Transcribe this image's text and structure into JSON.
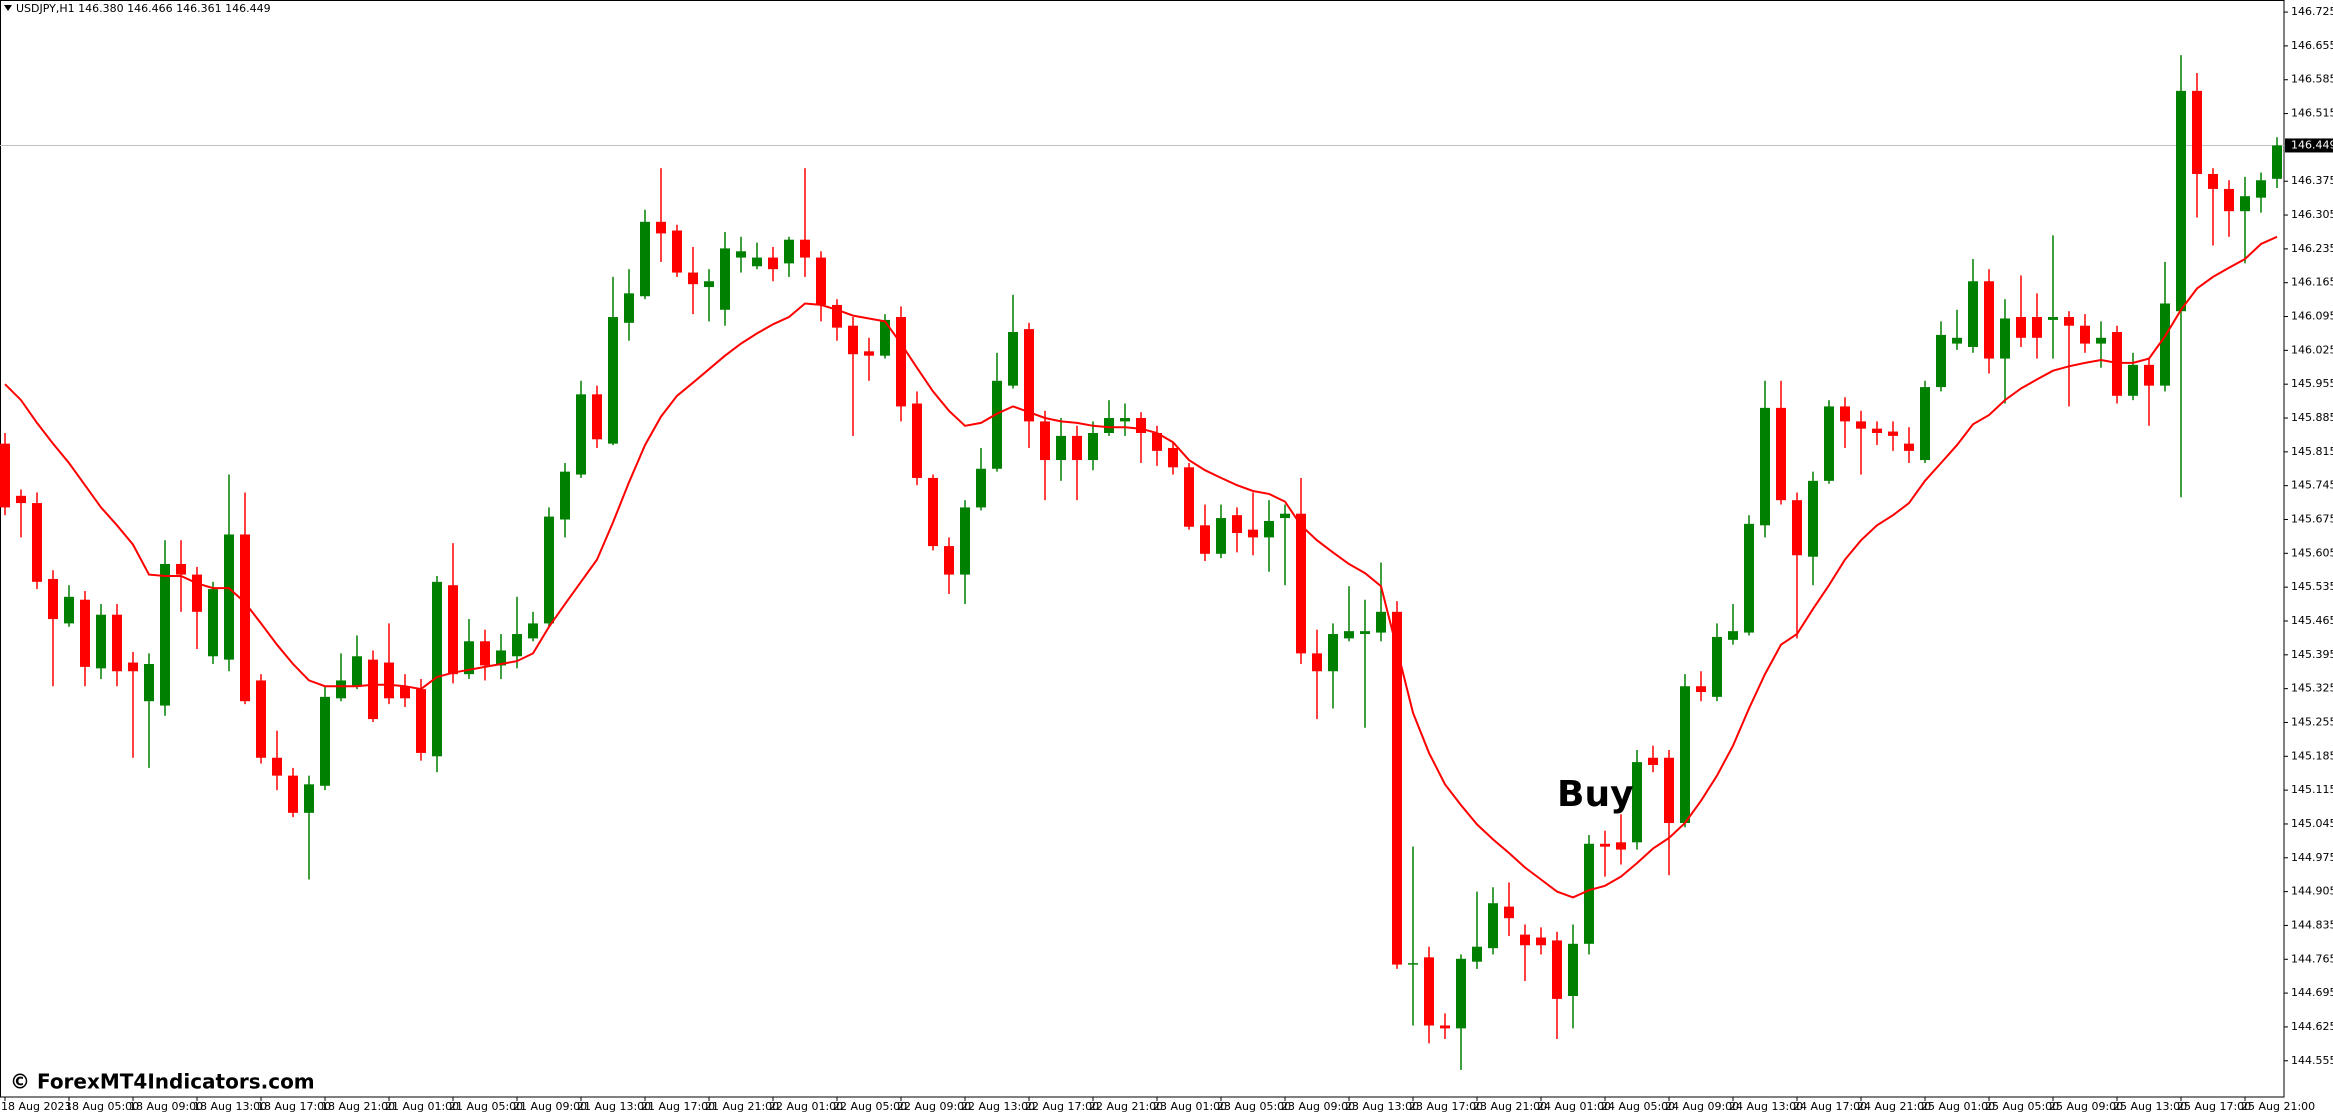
{
  "chart_data": {
    "type": "candlestick",
    "subtitle": "USDJPY,H1  146.380 146.466 146.361 146.449",
    "annotation": "Buy",
    "watermark": "© ForexMT4Indicators.com",
    "up_color": "#008000",
    "down_color": "#ff0000",
    "ylim": [
      144.48,
      146.75
    ],
    "yticks": [
      146.725,
      146.655,
      146.585,
      146.515,
      146.375,
      146.305,
      146.235,
      146.165,
      146.095,
      146.025,
      145.955,
      145.885,
      145.815,
      145.745,
      145.675,
      145.605,
      145.535,
      145.465,
      145.395,
      145.325,
      145.255,
      145.185,
      145.115,
      145.045,
      144.975,
      144.905,
      144.835,
      144.765,
      144.695,
      144.625,
      144.555
    ],
    "last_price": 146.449,
    "categories": [
      "18 Aug 2023",
      null,
      null,
      null,
      "18 Aug 05:00",
      null,
      null,
      null,
      "18 Aug 09:00",
      null,
      null,
      null,
      "18 Aug 13:00",
      null,
      null,
      null,
      "18 Aug 17:00",
      null,
      null,
      null,
      "18 Aug 21:00",
      null,
      null,
      null,
      "21 Aug 01:00",
      null,
      null,
      null,
      "21 Aug 05:00",
      null,
      null,
      null,
      "21 Aug 09:00",
      null,
      null,
      null,
      "21 Aug 13:00",
      null,
      null,
      null,
      "21 Aug 17:00",
      null,
      null,
      null,
      "21 Aug 21:00",
      null,
      null,
      null,
      "22 Aug 01:00",
      null,
      null,
      null,
      "22 Aug 05:00",
      null,
      null,
      null,
      "22 Aug 09:00",
      null,
      null,
      null,
      "22 Aug 13:00",
      null,
      null,
      null,
      "22 Aug 17:00",
      null,
      null,
      null,
      "22 Aug 21:00",
      null,
      null,
      null,
      "23 Aug 01:00",
      null,
      null,
      null,
      "23 Aug 05:00",
      null,
      null,
      null,
      "23 Aug 09:00",
      null,
      null,
      null,
      "23 Aug 13:00",
      null,
      null,
      null,
      "23 Aug 17:00",
      null,
      null,
      null,
      "23 Aug 21:00",
      null,
      null,
      null,
      "24 Aug 01:00",
      null,
      null,
      null,
      "24 Aug 05:00",
      null,
      null,
      null,
      "24 Aug 09:00",
      null,
      null,
      null,
      "24 Aug 13:00",
      null,
      null,
      null,
      "24 Aug 17:00",
      null,
      null,
      null,
      "24 Aug 21:00",
      null,
      null,
      null,
      "25 Aug 01:00",
      null,
      null,
      null,
      "25 Aug 05:00",
      null,
      null,
      null,
      "25 Aug 09:00",
      null,
      null,
      null,
      "25 Aug 13:00",
      null,
      null,
      null,
      "25 Aug 17:00",
      null,
      null,
      null,
      "25 Aug 21:00",
      null,
      null
    ],
    "ohlc": [
      [
        145.832,
        145.854,
        145.684,
        145.7
      ],
      [
        145.724,
        145.737,
        145.638,
        145.709
      ],
      [
        145.709,
        145.731,
        145.531,
        145.546
      ],
      [
        145.552,
        145.57,
        145.33,
        145.469
      ],
      [
        145.46,
        145.539,
        145.453,
        145.515
      ],
      [
        145.509,
        145.527,
        145.33,
        145.37
      ],
      [
        145.367,
        145.5,
        145.345,
        145.478
      ],
      [
        145.478,
        145.5,
        145.33,
        145.361
      ],
      [
        145.379,
        145.401,
        145.182,
        145.361
      ],
      [
        145.299,
        145.398,
        145.161,
        145.376
      ],
      [
        145.29,
        145.632,
        145.269,
        145.583
      ],
      [
        145.583,
        145.632,
        145.484,
        145.561
      ],
      [
        145.561,
        145.577,
        145.407,
        145.484
      ],
      [
        145.392,
        145.546,
        145.376,
        145.531
      ],
      [
        145.385,
        145.768,
        145.361,
        145.644
      ],
      [
        145.644,
        145.731,
        145.293,
        145.299
      ],
      [
        145.342,
        145.355,
        145.17,
        145.182
      ],
      [
        145.182,
        145.238,
        145.115,
        145.145
      ],
      [
        145.145,
        145.161,
        145.059,
        145.068
      ],
      [
        145.068,
        145.145,
        144.93,
        145.127
      ],
      [
        145.124,
        145.33,
        145.115,
        145.308
      ],
      [
        145.305,
        145.398,
        145.299,
        145.342
      ],
      [
        145.33,
        145.435,
        145.324,
        145.392
      ],
      [
        145.385,
        145.404,
        145.256,
        145.262
      ],
      [
        145.379,
        145.46,
        145.293,
        145.305
      ],
      [
        145.33,
        145.355,
        145.287,
        145.305
      ],
      [
        145.324,
        145.345,
        145.176,
        145.192
      ],
      [
        145.185,
        145.558,
        145.152,
        145.546
      ],
      [
        145.539,
        145.626,
        145.336,
        145.355
      ],
      [
        145.355,
        145.469,
        145.345,
        145.423
      ],
      [
        145.423,
        145.447,
        145.342,
        145.373
      ],
      [
        145.373,
        145.438,
        145.345,
        145.404
      ],
      [
        145.392,
        145.515,
        145.367,
        145.438
      ],
      [
        145.429,
        145.484,
        145.423,
        145.46
      ],
      [
        145.46,
        145.7,
        145.453,
        145.681
      ],
      [
        145.675,
        145.792,
        145.638,
        145.774
      ],
      [
        145.768,
        145.962,
        145.761,
        145.934
      ],
      [
        145.934,
        145.952,
        145.823,
        145.841
      ],
      [
        145.832,
        146.177,
        145.829,
        146.094
      ],
      [
        146.082,
        146.193,
        146.045,
        146.143
      ],
      [
        146.137,
        146.316,
        146.131,
        146.291
      ],
      [
        146.291,
        146.402,
        146.208,
        146.267
      ],
      [
        146.273,
        146.285,
        146.177,
        146.186
      ],
      [
        146.186,
        146.239,
        146.1,
        146.162
      ],
      [
        146.156,
        146.193,
        146.085,
        146.168
      ],
      [
        146.109,
        146.27,
        146.076,
        146.236
      ],
      [
        146.217,
        146.26,
        146.186,
        146.23
      ],
      [
        146.199,
        146.248,
        146.193,
        146.217
      ],
      [
        146.217,
        146.239,
        146.168,
        146.193
      ],
      [
        146.205,
        146.26,
        146.177,
        146.254
      ],
      [
        146.254,
        146.402,
        146.177,
        146.217
      ],
      [
        146.217,
        146.23,
        146.085,
        146.119
      ],
      [
        146.119,
        146.131,
        146.045,
        146.072
      ],
      [
        146.076,
        146.094,
        145.848,
        146.017
      ],
      [
        146.023,
        146.051,
        145.962,
        146.014
      ],
      [
        146.014,
        146.1,
        146.008,
        146.088
      ],
      [
        146.094,
        146.116,
        145.878,
        145.909
      ],
      [
        145.915,
        145.94,
        145.746,
        145.761
      ],
      [
        145.761,
        145.768,
        145.611,
        145.62
      ],
      [
        145.62,
        145.638,
        145.521,
        145.561
      ],
      [
        145.561,
        145.715,
        145.5,
        145.7
      ],
      [
        145.7,
        145.823,
        145.694,
        145.78
      ],
      [
        145.78,
        146.02,
        145.774,
        145.962
      ],
      [
        145.952,
        146.14,
        145.946,
        146.063
      ],
      [
        146.069,
        146.082,
        145.823,
        145.878
      ],
      [
        145.878,
        145.9,
        145.715,
        145.798
      ],
      [
        145.798,
        145.885,
        145.755,
        145.848
      ],
      [
        145.848,
        145.869,
        145.715,
        145.798
      ],
      [
        145.798,
        145.878,
        145.777,
        145.854
      ],
      [
        145.854,
        145.922,
        145.848,
        145.885
      ],
      [
        145.878,
        145.915,
        145.848,
        145.885
      ],
      [
        145.885,
        145.897,
        145.792,
        145.854
      ],
      [
        145.854,
        145.869,
        145.786,
        145.817
      ],
      [
        145.823,
        145.835,
        145.768,
        145.783
      ],
      [
        145.783,
        145.792,
        145.654,
        145.66
      ],
      [
        145.663,
        145.706,
        145.589,
        145.604
      ],
      [
        145.604,
        145.706,
        145.595,
        145.678
      ],
      [
        145.684,
        145.7,
        145.607,
        145.647
      ],
      [
        145.654,
        145.731,
        145.601,
        145.638
      ],
      [
        145.638,
        145.715,
        145.567,
        145.672
      ],
      [
        145.678,
        145.706,
        145.539,
        145.687
      ],
      [
        145.687,
        145.761,
        145.376,
        145.398
      ],
      [
        145.398,
        145.447,
        145.262,
        145.361
      ],
      [
        145.361,
        145.46,
        145.284,
        145.438
      ],
      [
        145.429,
        145.537,
        145.423,
        145.444
      ],
      [
        145.438,
        145.509,
        145.244,
        145.444
      ],
      [
        145.441,
        145.586,
        145.423,
        145.484
      ],
      [
        145.484,
        145.506,
        144.745,
        144.754
      ],
      [
        144.754,
        144.998,
        144.628,
        144.757
      ],
      [
        144.769,
        144.791,
        144.591,
        144.628
      ],
      [
        144.628,
        144.653,
        144.6,
        144.622
      ],
      [
        144.622,
        144.775,
        144.536,
        144.766
      ],
      [
        144.76,
        144.905,
        144.745,
        144.791
      ],
      [
        144.788,
        144.914,
        144.775,
        144.881
      ],
      [
        144.874,
        144.924,
        144.813,
        144.85
      ],
      [
        144.816,
        144.837,
        144.72,
        144.794
      ],
      [
        144.81,
        144.831,
        144.775,
        144.794
      ],
      [
        144.804,
        144.822,
        144.6,
        144.683
      ],
      [
        144.689,
        144.837,
        144.622,
        144.797
      ],
      [
        144.797,
        145.022,
        144.775,
        145.004
      ],
      [
        145.004,
        145.031,
        144.936,
        144.998
      ],
      [
        145.007,
        145.065,
        144.961,
        144.992
      ],
      [
        145.007,
        145.198,
        144.992,
        145.173
      ],
      [
        145.182,
        145.207,
        145.152,
        145.167
      ],
      [
        145.182,
        145.198,
        144.939,
        145.047
      ],
      [
        145.047,
        145.355,
        145.038,
        145.33
      ],
      [
        145.33,
        145.361,
        145.299,
        145.318
      ],
      [
        145.308,
        145.46,
        145.299,
        145.432
      ],
      [
        145.426,
        145.5,
        145.416,
        145.444
      ],
      [
        145.441,
        145.684,
        145.435,
        145.666
      ],
      [
        145.663,
        145.962,
        145.638,
        145.906
      ],
      [
        145.906,
        145.962,
        145.706,
        145.715
      ],
      [
        145.715,
        145.731,
        145.429,
        145.601
      ],
      [
        145.598,
        145.774,
        145.539,
        145.755
      ],
      [
        145.755,
        145.922,
        145.749,
        145.909
      ],
      [
        145.909,
        145.928,
        145.823,
        145.878
      ],
      [
        145.878,
        145.9,
        145.768,
        145.863
      ],
      [
        145.863,
        145.878,
        145.829,
        145.854
      ],
      [
        145.857,
        145.878,
        145.817,
        145.848
      ],
      [
        145.832,
        145.866,
        145.792,
        145.817
      ],
      [
        145.798,
        145.962,
        145.792,
        145.949
      ],
      [
        145.949,
        146.085,
        145.94,
        146.057
      ],
      [
        146.039,
        146.109,
        146.026,
        146.051
      ],
      [
        146.032,
        146.214,
        146.02,
        146.168
      ],
      [
        146.168,
        146.193,
        145.977,
        146.008
      ],
      [
        146.008,
        146.131,
        145.915,
        146.091
      ],
      [
        146.094,
        146.18,
        146.032,
        146.051
      ],
      [
        146.094,
        146.143,
        146.008,
        146.051
      ],
      [
        146.088,
        146.263,
        146.008,
        146.094
      ],
      [
        146.094,
        146.106,
        145.909,
        146.076
      ],
      [
        146.076,
        146.1,
        146.02,
        146.039
      ],
      [
        146.039,
        146.085,
        145.989,
        146.051
      ],
      [
        146.063,
        146.076,
        145.915,
        145.931
      ],
      [
        145.931,
        146.02,
        145.922,
        145.995
      ],
      [
        145.995,
        146.008,
        145.869,
        145.952
      ],
      [
        145.952,
        146.208,
        145.94,
        146.122
      ],
      [
        146.106,
        146.636,
        145.721,
        146.562
      ],
      [
        146.562,
        146.599,
        146.3,
        146.39
      ],
      [
        146.39,
        146.402,
        146.242,
        146.359
      ],
      [
        146.359,
        146.377,
        146.26,
        146.313
      ],
      [
        146.313,
        146.384,
        146.205,
        146.344
      ],
      [
        146.341,
        146.393,
        146.31,
        146.377
      ],
      [
        146.38,
        146.466,
        146.361,
        146.449
      ]
    ],
    "series": [
      {
        "type": "line",
        "color": "#ff0000",
        "values": [
          145.955,
          145.922,
          145.875,
          145.832,
          145.792,
          145.746,
          145.7,
          145.663,
          145.623,
          145.561,
          145.558,
          145.558,
          145.543,
          145.533,
          145.533,
          145.503,
          145.46,
          145.416,
          145.376,
          145.342,
          145.33,
          145.33,
          145.33,
          145.333,
          145.333,
          145.33,
          145.324,
          145.349,
          145.358,
          145.364,
          145.37,
          145.376,
          145.382,
          145.398,
          145.453,
          145.5,
          145.546,
          145.592,
          145.669,
          145.752,
          145.829,
          145.888,
          145.931,
          145.958,
          145.986,
          146.014,
          146.039,
          146.06,
          146.079,
          146.094,
          146.122,
          146.119,
          146.109,
          146.097,
          146.091,
          146.085,
          146.039,
          145.989,
          145.94,
          145.9,
          145.869,
          145.875,
          145.894,
          145.909,
          145.897,
          145.885,
          145.878,
          145.875,
          145.869,
          145.866,
          145.866,
          145.863,
          145.854,
          145.835,
          145.798,
          145.777,
          145.761,
          145.746,
          145.734,
          145.728,
          145.712,
          145.663,
          145.632,
          145.607,
          145.583,
          145.564,
          145.537,
          145.407,
          145.275,
          145.192,
          145.127,
          145.084,
          145.044,
          145.013,
          144.985,
          144.955,
          144.93,
          144.905,
          144.893,
          144.908,
          144.917,
          144.936,
          144.964,
          144.994,
          145.016,
          145.047,
          145.093,
          145.145,
          145.207,
          145.284,
          145.355,
          145.416,
          145.438,
          145.49,
          145.539,
          145.592,
          145.632,
          145.663,
          145.684,
          145.709,
          145.755,
          145.792,
          145.829,
          145.872,
          145.891,
          145.922,
          145.946,
          145.965,
          145.983,
          145.992,
          145.999,
          146.005,
          145.999,
          145.999,
          146.008,
          146.054,
          146.109,
          146.153,
          146.177,
          146.196,
          146.214,
          146.245,
          146.26
        ]
      }
    ]
  }
}
